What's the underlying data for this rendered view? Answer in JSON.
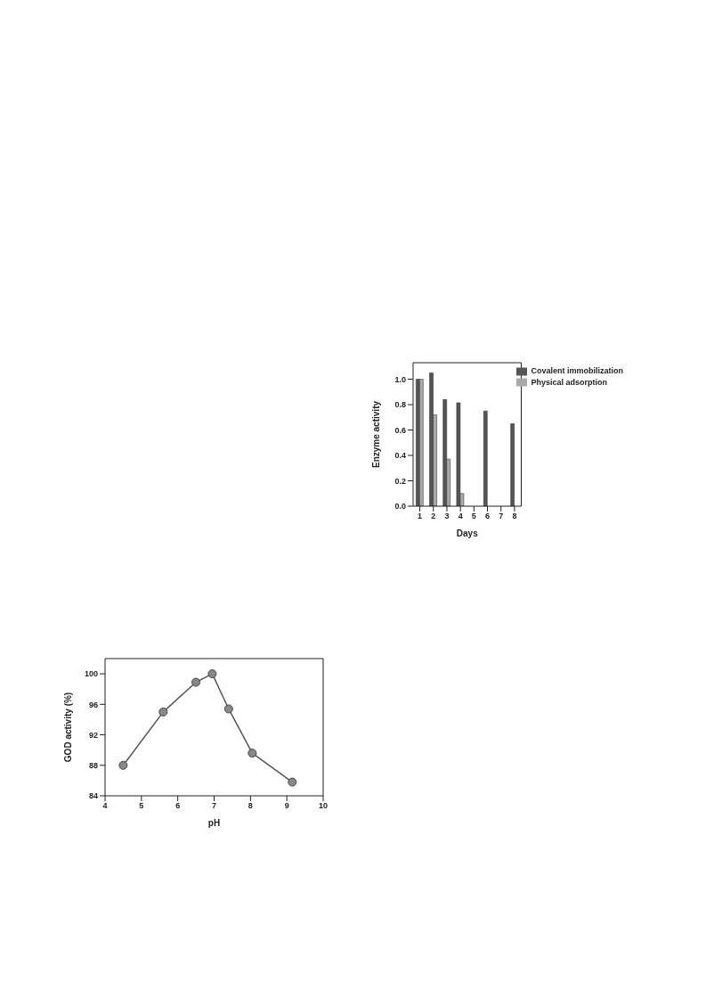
{
  "chart_data": [
    {
      "type": "line",
      "xlabel": "pH",
      "ylabel": "GOD activity (%)",
      "x": [
        4.5,
        5.6,
        6.5,
        6.95,
        7.4,
        8.05,
        9.15
      ],
      "series": [
        {
          "color": "#555555",
          "values": [
            88,
            95,
            98.9,
            100,
            95.4,
            89.6,
            85.8
          ]
        }
      ],
      "xlim": [
        4,
        10
      ],
      "xticks": [
        4,
        5,
        6,
        7,
        8,
        9,
        10
      ],
      "ylim": [
        84,
        102
      ],
      "yticks": [
        84,
        88,
        92,
        96,
        100
      ],
      "marker": "circle",
      "line_style": "solid",
      "grid": false,
      "legend": false
    },
    {
      "type": "bar",
      "xlabel": "Days",
      "ylabel": "Enzyme activity",
      "categories": [
        "1",
        "2",
        "3",
        "4",
        "5",
        "6",
        "7",
        "8"
      ],
      "series": [
        {
          "name": "Covalent immobilization",
          "color": "#555555",
          "values": [
            1.0,
            1.05,
            0.84,
            0.815,
            null,
            0.75,
            null,
            0.65
          ]
        },
        {
          "name": "Physical adsorption",
          "color": "#aaaaaa",
          "values": [
            1.0,
            0.72,
            0.37,
            0.1,
            null,
            null,
            null,
            null
          ]
        }
      ],
      "ylim": [
        0,
        1.13
      ],
      "yticks": [
        {
          "value": 0,
          "label": "0.0"
        },
        0.2,
        0.4,
        0.6,
        0.8,
        {
          "value": 1,
          "label": "1.0"
        }
      ],
      "grid": false,
      "legend": "top right"
    }
  ]
}
